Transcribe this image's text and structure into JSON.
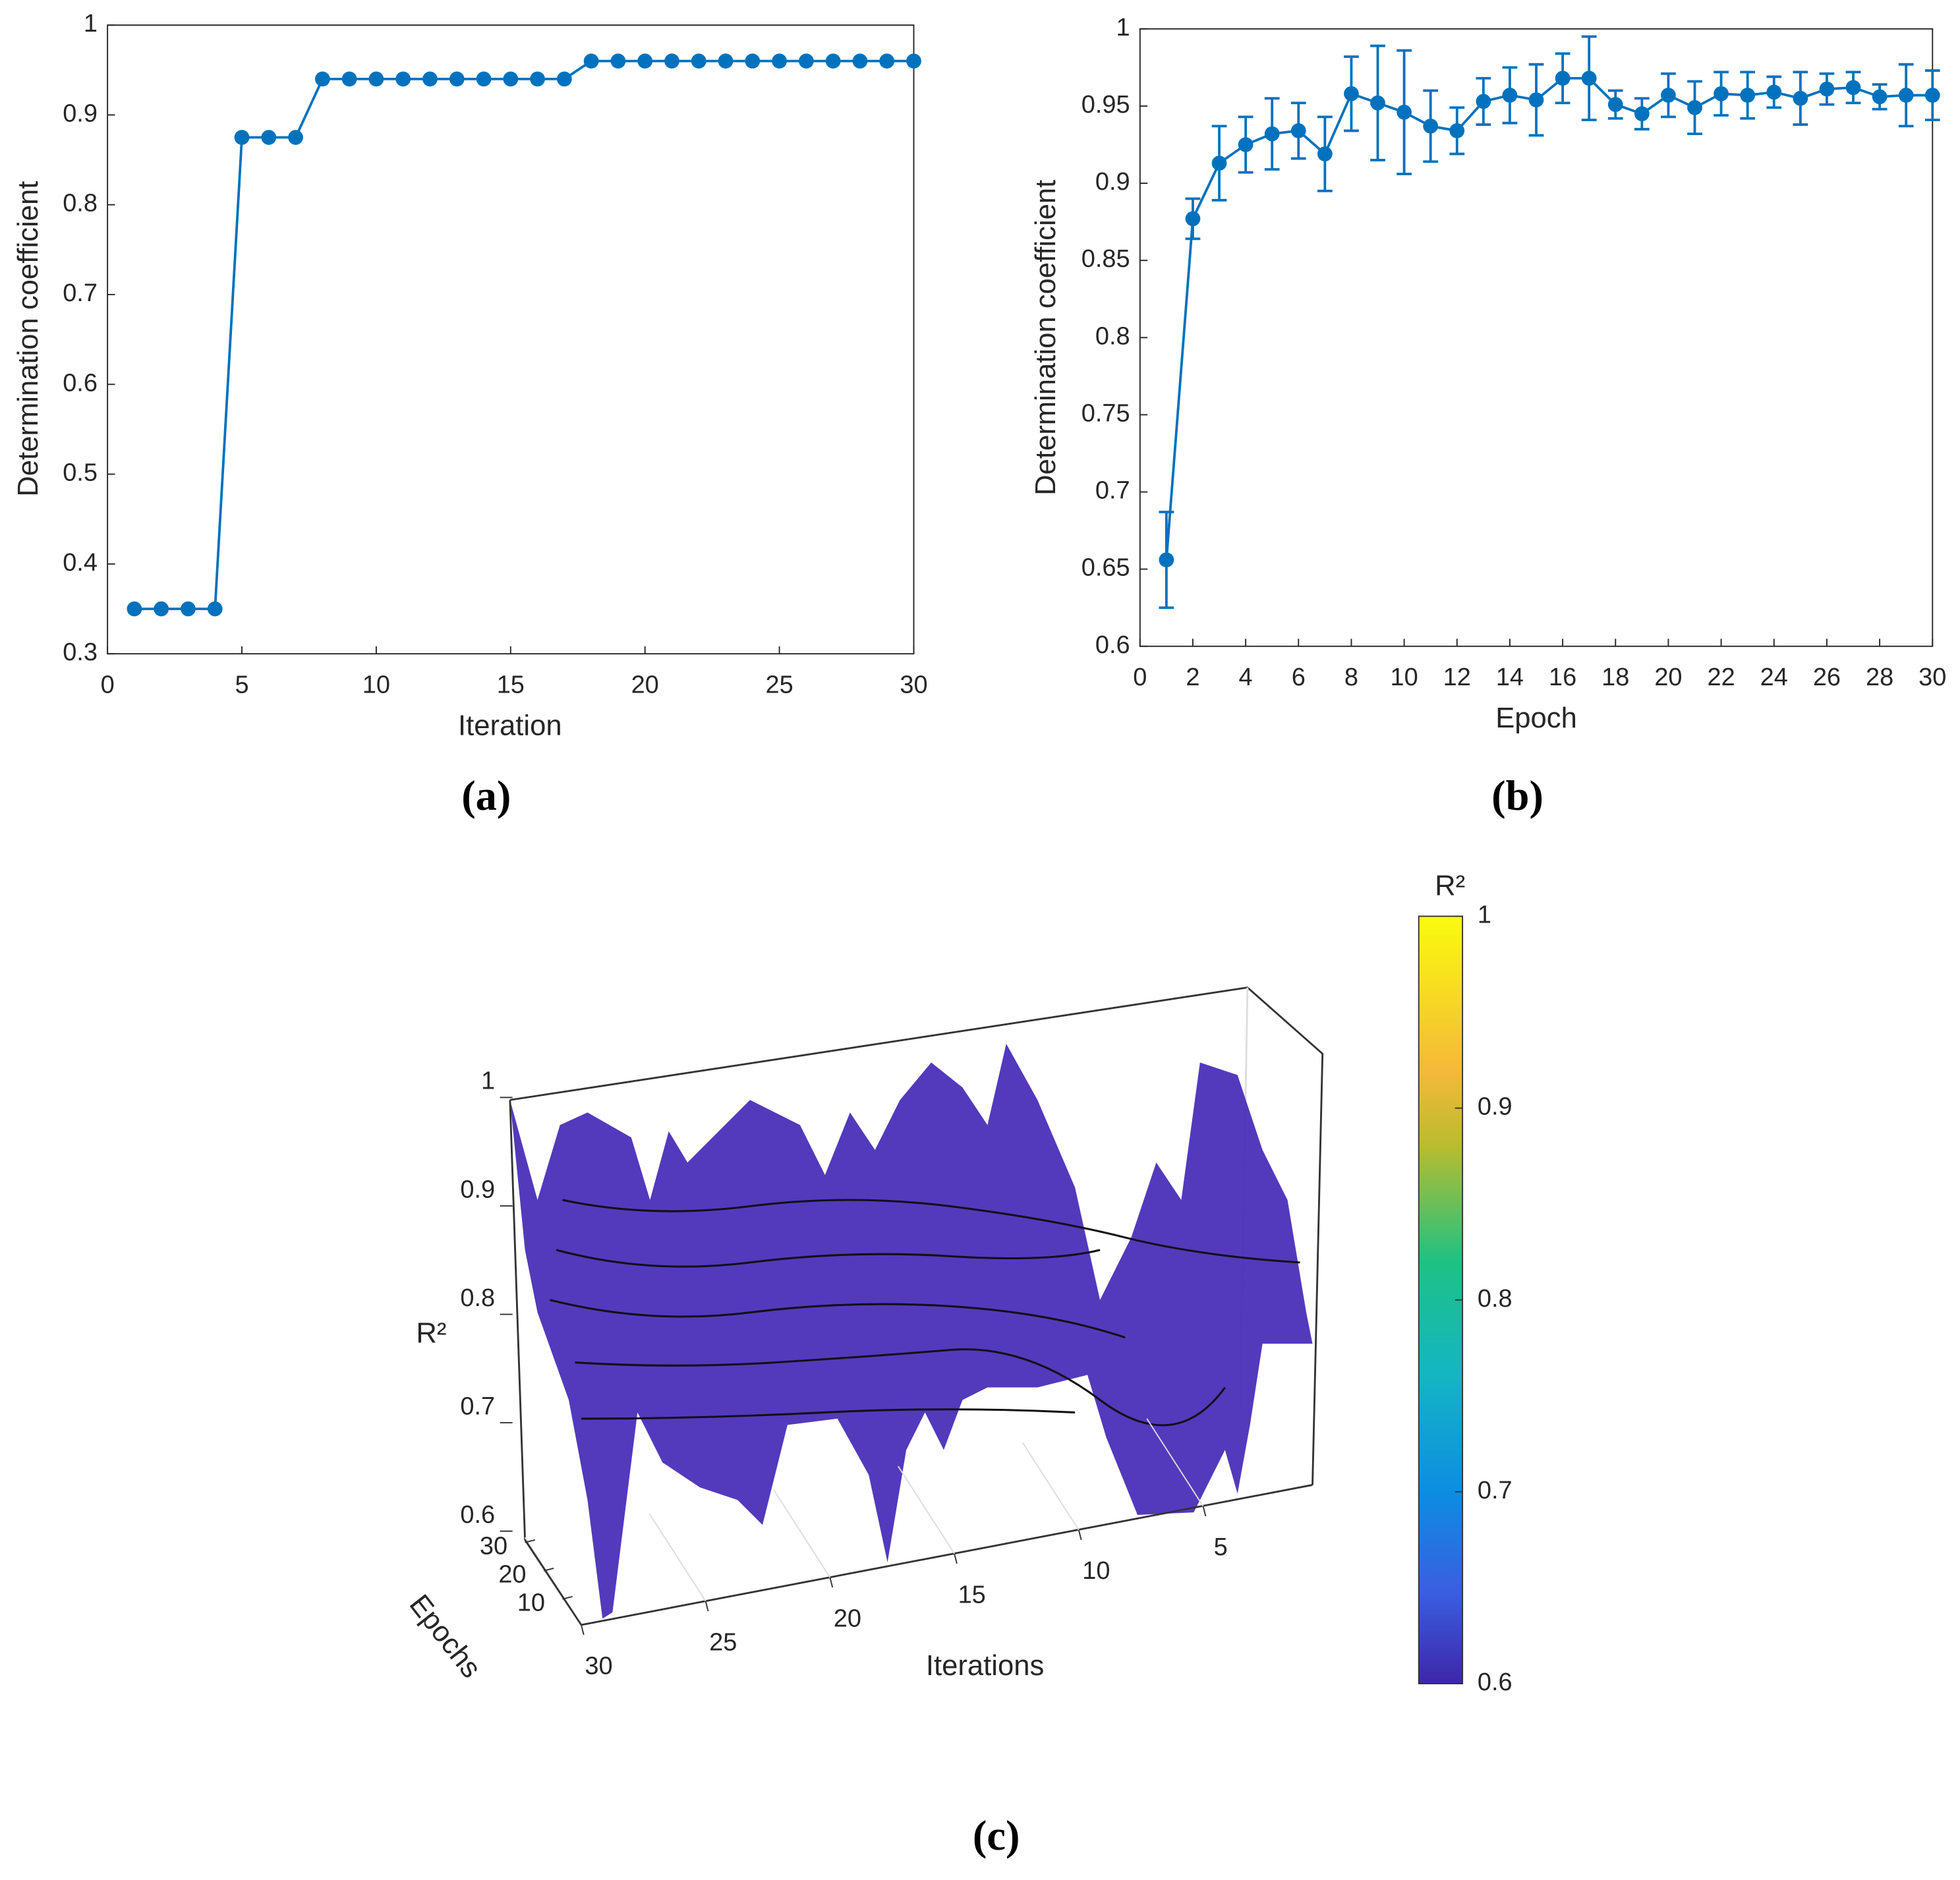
{
  "chart_data": [
    {
      "type": "line",
      "caption": "(a)",
      "xlabel": "Iteration",
      "ylabel": "Determination coefficient",
      "color": "#0072bd",
      "x": [
        1,
        2,
        3,
        4,
        5,
        6,
        7,
        8,
        9,
        10,
        11,
        12,
        13,
        14,
        15,
        16,
        17,
        18,
        19,
        20,
        21,
        22,
        23,
        24,
        25,
        26,
        27,
        28,
        29,
        30
      ],
      "series": [
        {
          "values": [
            0.35,
            0.35,
            0.35,
            0.35,
            0.875,
            0.875,
            0.875,
            0.94,
            0.94,
            0.94,
            0.94,
            0.94,
            0.94,
            0.94,
            0.94,
            0.94,
            0.94,
            0.96,
            0.96,
            0.96,
            0.96,
            0.96,
            0.96,
            0.96,
            0.96,
            0.96,
            0.96,
            0.96,
            0.96,
            0.96
          ]
        }
      ],
      "xlim": [
        0,
        30
      ],
      "xticks": [
        0,
        5,
        10,
        15,
        20,
        25,
        30
      ],
      "ylim": [
        0.3,
        1
      ],
      "yticks": [
        0.3,
        0.4,
        0.5,
        0.6,
        0.7,
        0.8,
        0.9,
        1
      ]
    },
    {
      "type": "errorbar",
      "caption": "(b)",
      "xlabel": "Epoch",
      "ylabel": "Determination coefficient",
      "color": "#0072bd",
      "x": [
        1,
        2,
        3,
        4,
        5,
        6,
        7,
        8,
        9,
        10,
        11,
        12,
        13,
        14,
        15,
        16,
        17,
        18,
        19,
        20,
        21,
        22,
        23,
        24,
        25,
        26,
        27,
        28,
        29,
        30
      ],
      "series": [
        {
          "values": [
            0.656,
            0.877,
            0.913,
            0.925,
            0.932,
            0.934,
            0.919,
            0.958,
            0.952,
            0.946,
            0.937,
            0.934,
            0.953,
            0.957,
            0.954,
            0.968,
            0.968,
            0.951,
            0.945,
            0.957,
            0.949,
            0.958,
            0.957,
            0.959,
            0.955,
            0.961,
            0.962,
            0.956,
            0.957,
            0.957
          ],
          "errors": [
            0.031,
            0.013,
            0.024,
            0.018,
            0.023,
            0.018,
            0.024,
            0.024,
            0.037,
            0.04,
            0.023,
            0.015,
            0.015,
            0.018,
            0.023,
            0.016,
            0.027,
            0.009,
            0.01,
            0.014,
            0.017,
            0.014,
            0.015,
            0.01,
            0.017,
            0.01,
            0.01,
            0.008,
            0.02,
            0.016
          ]
        }
      ],
      "xlim": [
        0,
        30
      ],
      "xticks": [
        0,
        2,
        4,
        6,
        8,
        10,
        12,
        14,
        16,
        18,
        20,
        22,
        24,
        26,
        28,
        30
      ],
      "ylim": [
        0.6,
        1
      ],
      "yticks": [
        0.6,
        0.65,
        0.7,
        0.75,
        0.8,
        0.85,
        0.9,
        0.95,
        1
      ]
    },
    {
      "type": "surface",
      "caption": "(c)",
      "xlabel": "Iterations",
      "ylabel": "Epochs",
      "zlabel": "R²",
      "colorbar_title": "R²",
      "xticks": [
        5,
        10,
        15,
        20,
        25,
        30
      ],
      "yticks": [
        10,
        20,
        30
      ],
      "zlim": [
        0.6,
        1
      ],
      "zticks": [
        0.6,
        0.7,
        0.8,
        0.9,
        1
      ],
      "clim": [
        0.6,
        1
      ],
      "cticks": [
        0.6,
        0.7,
        0.8,
        0.9,
        1
      ]
    }
  ]
}
